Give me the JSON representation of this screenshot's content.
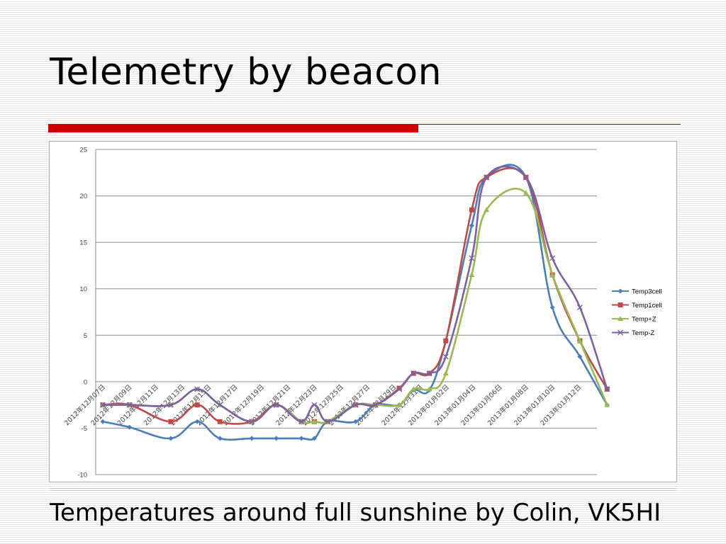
{
  "slide": {
    "title": "Telemetry by beacon",
    "caption": "Temperatures around full sunshine by Colin, VK5HI",
    "accent_color": "#cc0000"
  },
  "chart_data": {
    "type": "line",
    "title": "",
    "xlabel": "",
    "ylabel": "",
    "ylim": [
      -10,
      25
    ],
    "yticks": [
      -10,
      -5,
      0,
      5,
      10,
      15,
      20,
      25
    ],
    "grid": true,
    "legend_position": "right",
    "smooth": true,
    "x_tick_labels": [
      "2012年12月07日",
      "2012年12月09日",
      "2012年12月11日",
      "2012年12月13日",
      "2012年12月15日",
      "2012年12月17日",
      "2012年12月19日",
      "2012年12月21日",
      "2012年12月23日",
      "2012年12月25日",
      "2012年12月27日",
      "2012年12月29日",
      "2012年12月31日",
      "2013年01月02日",
      "2013年01月04日",
      "2013年01月06日",
      "2013年01月08日",
      "2013年01月10日",
      "2013年01月12日"
    ],
    "x_positions": [
      0,
      1.01,
      2.57,
      3.57,
      4.43,
      5.63,
      6.56,
      7.51,
      8.0,
      8.51,
      9.56,
      10.31,
      11.21,
      11.75,
      12.35,
      12.97,
      13.95,
      14.51,
      16.0,
      17.0,
      18.04,
      19.07
    ],
    "series": [
      {
        "name": "Temp3cell",
        "color": "#4a7ebb",
        "marker": "diamond",
        "values": [
          -4.3,
          -4.9,
          -6.1,
          -4.3,
          -6.1,
          -6.1,
          -6.1,
          -6.1,
          -6.1,
          -4.3,
          -4.3,
          -2.5,
          -2.5,
          -0.9,
          -0.9,
          4.4,
          16.8,
          22.0,
          22.0,
          8.0,
          2.7,
          -2.5
        ]
      },
      {
        "name": "Temp1cell",
        "color": "#be4b48",
        "marker": "square",
        "values": [
          -2.5,
          -2.5,
          -4.3,
          -2.5,
          -4.3,
          -4.3,
          -2.5,
          -4.3,
          -4.3,
          -4.3,
          -2.5,
          -2.5,
          -0.7,
          0.9,
          0.9,
          4.4,
          18.5,
          22.0,
          22.0,
          11.5,
          4.4,
          -0.8
        ]
      },
      {
        "name": "Temp+Z",
        "color": "#98b954",
        "marker": "triangle",
        "values": [
          -2.5,
          -2.5,
          -2.5,
          -0.8,
          -2.5,
          -4.3,
          -2.5,
          -4.3,
          -4.3,
          -4.3,
          -2.5,
          -2.5,
          -2.5,
          -0.8,
          -0.8,
          0.9,
          11.5,
          18.5,
          20.3,
          11.5,
          4.4,
          -2.5
        ]
      },
      {
        "name": "Temp-Z",
        "color": "#7d60a0",
        "marker": "x",
        "values": [
          -2.5,
          -2.5,
          -2.5,
          -0.8,
          -2.5,
          -4.3,
          -2.5,
          -4.3,
          -2.5,
          -4.3,
          -2.5,
          -2.5,
          -0.8,
          0.9,
          0.9,
          2.7,
          13.3,
          22.0,
          22.0,
          13.3,
          8.0,
          -0.8
        ]
      }
    ]
  }
}
